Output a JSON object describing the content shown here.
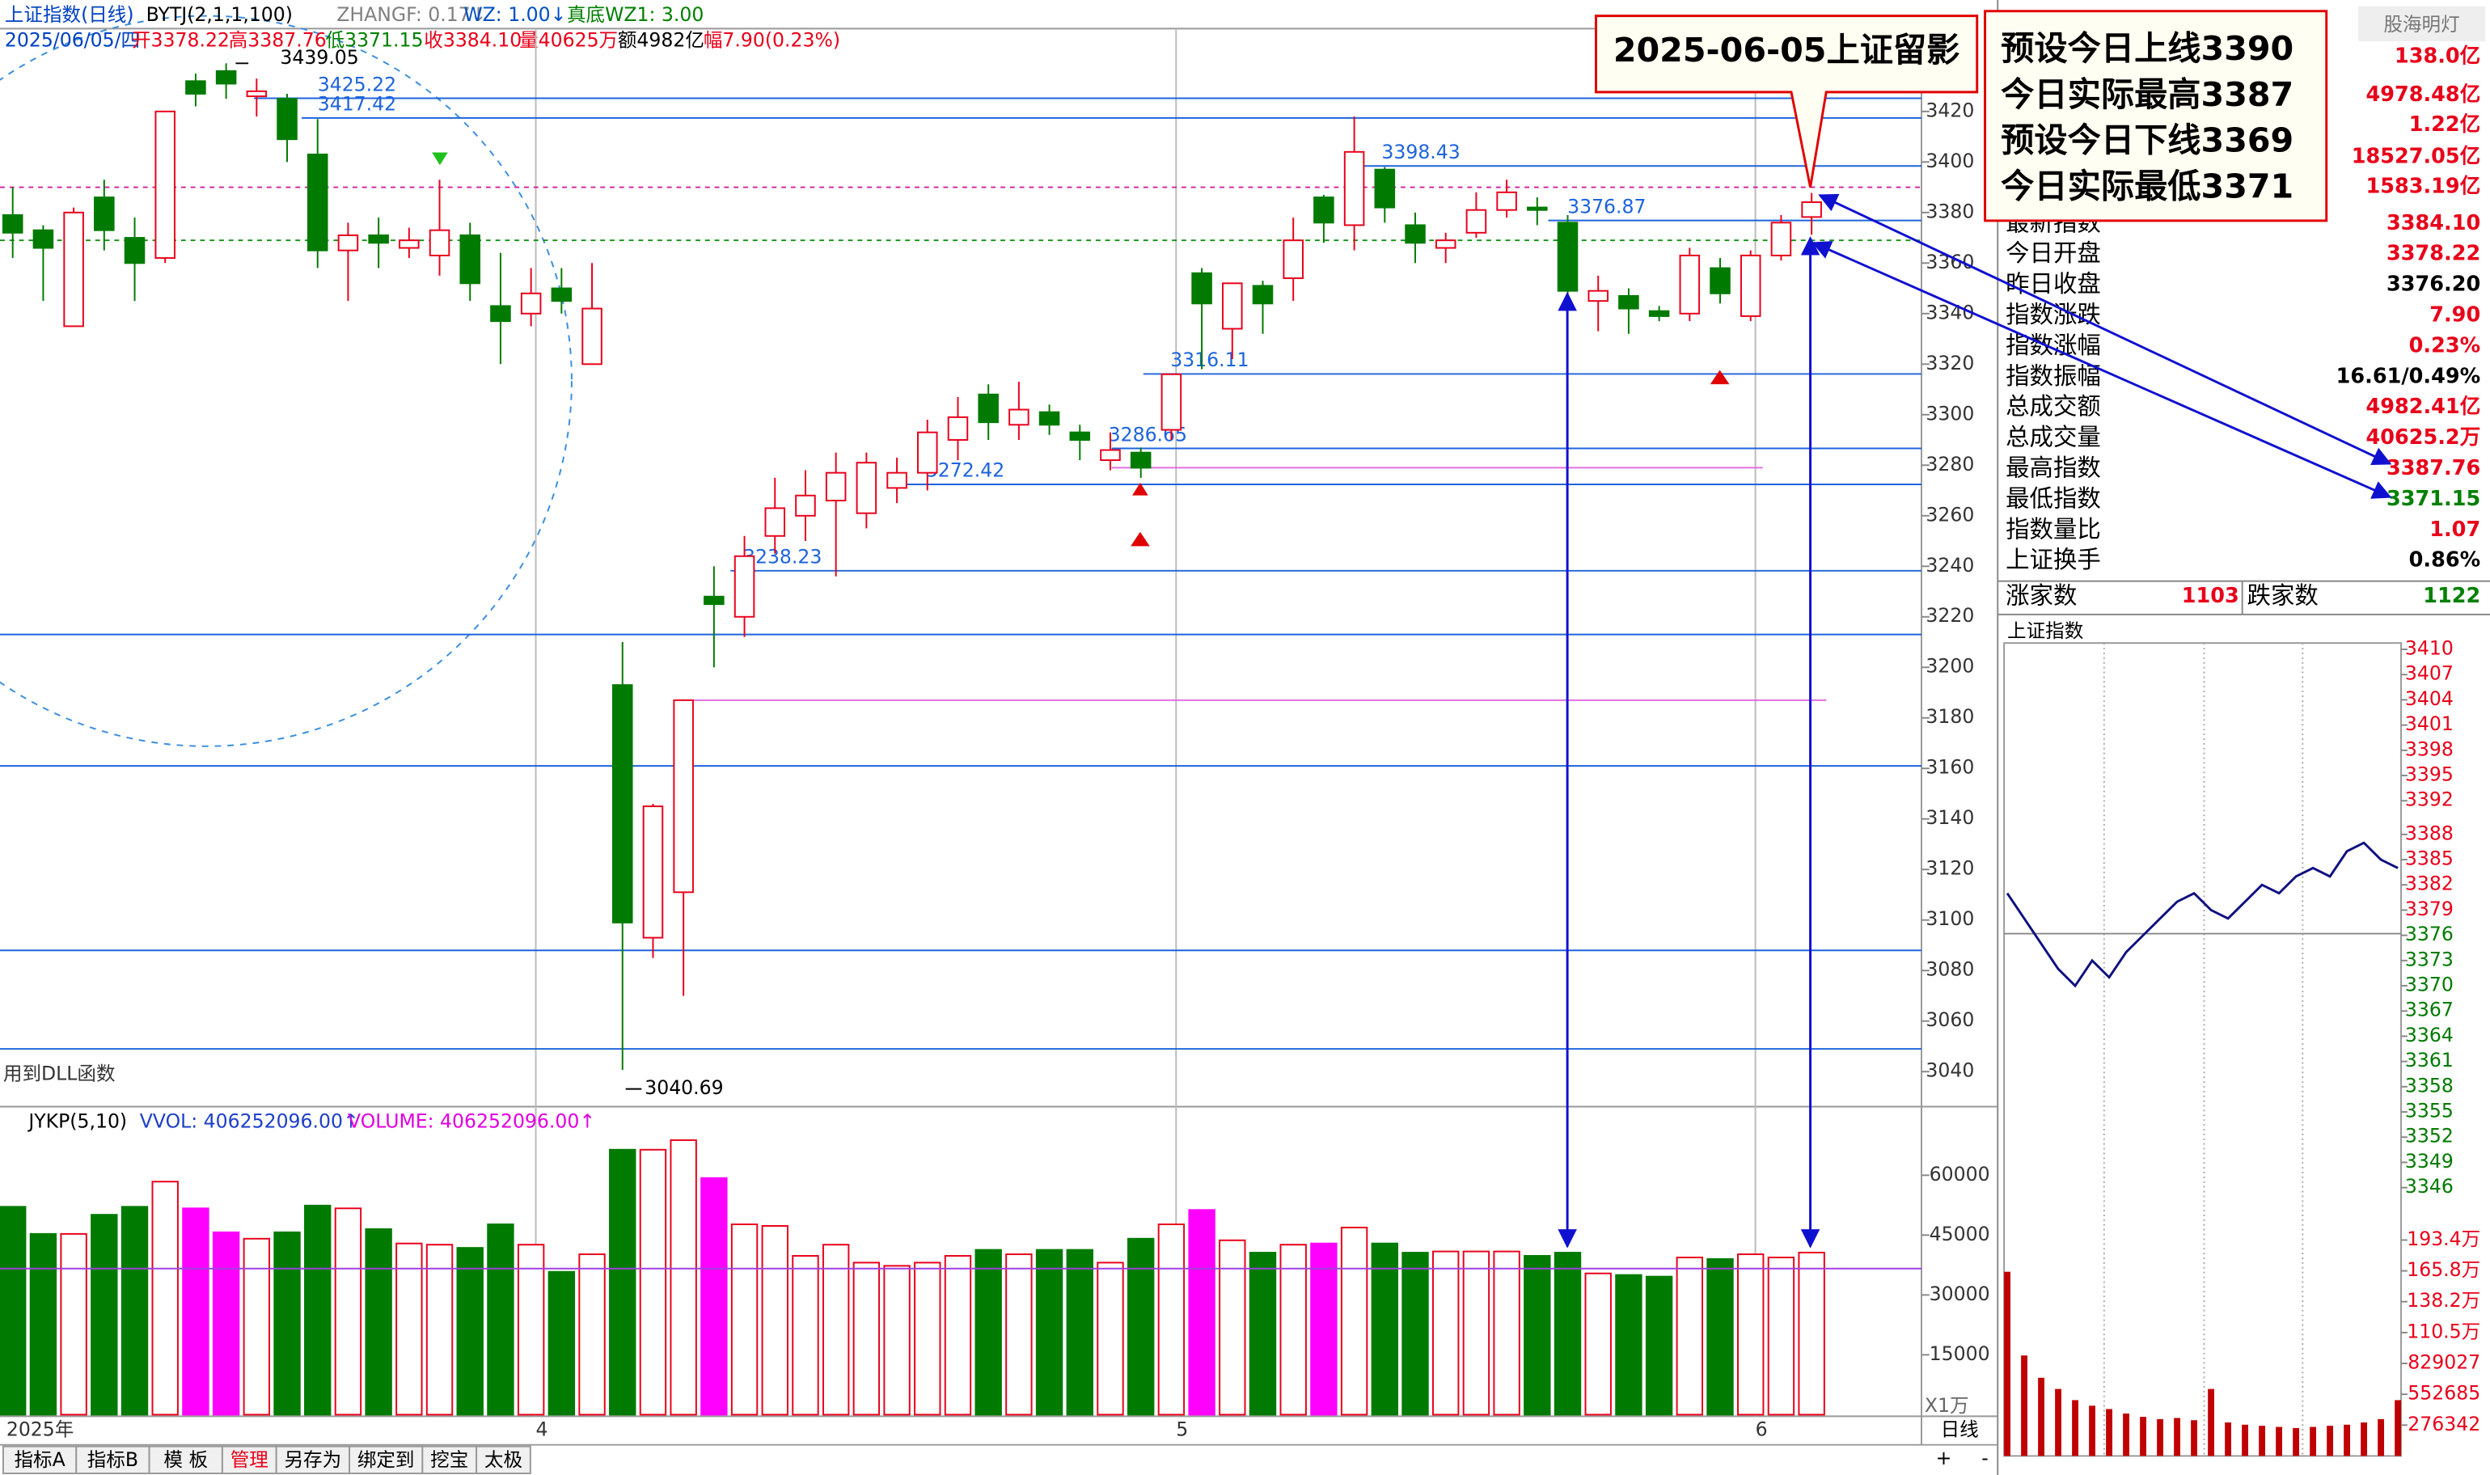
{
  "header": {
    "title": "上证指数(日线)",
    "indicators": [
      {
        "text": "BYTJ(2,1,1,100)",
        "color": "#000000"
      },
      {
        "text": "ZHANGF: 0.17↓",
        "color": "#808080"
      },
      {
        "text": "WZ: 1.00↓",
        "color": "#0050c0"
      },
      {
        "text": "真底WZ1: 3.00",
        "color": "#008000"
      }
    ],
    "info": [
      {
        "text": "2025/06/05/四",
        "color": "#0040c0"
      },
      {
        "text": "开3378.22",
        "color": "#e8001a"
      },
      {
        "text": "高3387.76",
        "color": "#e8001a"
      },
      {
        "text": "低3371.15",
        "color": "#008000"
      },
      {
        "text": "收3384.10",
        "color": "#e8001a"
      },
      {
        "text": "量40625万",
        "color": "#e8001a"
      },
      {
        "text": "额4982亿",
        "color": "#000000"
      },
      {
        "text": "幅7.90(0.23%)",
        "color": "#e8001a"
      }
    ]
  },
  "chart_data": [
    {
      "type": "candlestick",
      "up_color": "#e8001a",
      "down_color": "#007a00",
      "categories": [
        "2025年",
        null,
        null,
        null,
        null,
        null,
        null,
        null,
        null,
        null,
        null,
        null,
        null,
        null,
        null,
        null,
        null,
        "4",
        null,
        null,
        null,
        null,
        null,
        null,
        null,
        null,
        null,
        null,
        null,
        null,
        null,
        null,
        null,
        null,
        null,
        null,
        null,
        null,
        "5",
        null,
        null,
        null,
        null,
        null,
        null,
        null,
        null,
        null,
        null,
        null,
        null,
        null,
        null,
        null,
        null,
        null,
        null,
        "6",
        null,
        null
      ],
      "open": [
        3379,
        3373,
        3335,
        3386,
        3370,
        3362,
        3432,
        3436,
        3426,
        3425,
        3403,
        3365,
        3371,
        3366,
        3363,
        3371,
        3343,
        3340,
        3350,
        3320,
        3193,
        3093,
        3111,
        3228,
        3220,
        3252,
        3260,
        3266,
        3261,
        3271,
        3277,
        3290,
        3308,
        3296,
        3301,
        3293,
        3282,
        3285,
        3294,
        3356,
        3334,
        3351,
        3354,
        3386,
        3375,
        3397,
        3375,
        3366,
        3372,
        3381,
        3382,
        3376,
        3345,
        3347,
        3341,
        3340,
        3358,
        3339,
        3363,
        3378.22
      ],
      "high": [
        3390,
        3375,
        3382,
        3393,
        3378,
        3420,
        3435,
        3439.05,
        3433,
        3427,
        3417,
        3376,
        3378,
        3374,
        3393,
        3376,
        3364,
        3358,
        3358,
        3360,
        3210,
        3146,
        3187,
        3240,
        3252,
        3275,
        3278,
        3285,
        3285,
        3283,
        3298,
        3307,
        3312,
        3313,
        3304,
        3296,
        3293,
        3287,
        3316,
        3358,
        3352,
        3353,
        3378,
        3387,
        3418,
        3398,
        3380,
        3372,
        3388,
        3393,
        3386,
        3379,
        3355,
        3350,
        3343,
        3366,
        3362,
        3365,
        3379,
        3387.76
      ],
      "low": [
        3362,
        3345,
        3335,
        3365,
        3345,
        3360,
        3422,
        3425,
        3418,
        3400,
        3358,
        3345,
        3358,
        3362,
        3355,
        3345,
        3320,
        3335,
        3340,
        3320,
        3040.69,
        3085,
        3070,
        3200,
        3212,
        3245,
        3250,
        3236,
        3255,
        3265,
        3270,
        3282,
        3290,
        3290,
        3292,
        3282,
        3278,
        3275,
        3290,
        3318,
        3322,
        3332,
        3345,
        3368,
        3365,
        3376,
        3360,
        3360,
        3370,
        3378,
        3375,
        3340,
        3333,
        3332,
        3337,
        3337,
        3344,
        3337,
        3361,
        3371.15
      ],
      "close": [
        3372,
        3366,
        3380,
        3373,
        3360,
        3420,
        3427,
        3431,
        3428,
        3409,
        3365,
        3371,
        3368,
        3369,
        3373,
        3352,
        3337,
        3348,
        3345,
        3342,
        3099,
        3145,
        3187,
        3225,
        3244,
        3263,
        3268,
        3277,
        3281,
        3277,
        3293,
        3299,
        3297,
        3302,
        3296,
        3290,
        3286,
        3279,
        3316,
        3344,
        3352,
        3344,
        3369,
        3376,
        3404,
        3382,
        3368,
        3369,
        3381,
        3388,
        3381,
        3349,
        3349,
        3342,
        3339,
        3363,
        3348,
        3363,
        3376,
        3384.1
      ],
      "ylim": [
        3027.4,
        3452.8
      ],
      "yticks": [
        3040,
        3060,
        3080,
        3100,
        3120,
        3140,
        3160,
        3180,
        3200,
        3220,
        3240,
        3260,
        3280,
        3300,
        3320,
        3340,
        3360,
        3380,
        3400,
        3420
      ],
      "levels": [
        3425.22,
        3417.42,
        3398.43,
        3376.87,
        3316.11,
        3286.65,
        3272.42,
        3238.23
      ],
      "level_color": "#1e64dc",
      "plain_levels": [
        3213,
        3161,
        3088,
        3049
      ],
      "pink_levels": [
        3187,
        3279
      ],
      "upper_line": 3390,
      "lower_line": 3369,
      "high_label": "3439.05",
      "low_label": "3040.69",
      "note": "用到DLL函数"
    },
    {
      "type": "bar",
      "title": "JYKP(5,10)",
      "legend": [
        {
          "text": "VVOL: 406252096.00↑",
          "color": "#1e40c8"
        },
        {
          "text": "VOLUME: 406252096.00↑",
          "color": "#e000e0"
        }
      ],
      "values": [
        52100,
        45300,
        45300,
        50100,
        52100,
        58400,
        51700,
        45700,
        44100,
        45700,
        52400,
        51700,
        46500,
        42900,
        42600,
        41800,
        47700,
        42600,
        35800,
        40200,
        66400,
        66400,
        68800,
        59300,
        47700,
        47300,
        39800,
        42600,
        38100,
        37300,
        38100,
        39800,
        41300,
        40200,
        41300,
        41300,
        38100,
        44100,
        47700,
        51300,
        43700,
        40600,
        42600,
        42900,
        46900,
        42900,
        40600,
        40900,
        40900,
        40900,
        39800,
        40600,
        35400,
        35000,
        34600,
        39400,
        39000,
        40200,
        39400,
        40625
      ],
      "colors": [
        "#007a00",
        "#007a00",
        "#e8001a",
        "#007a00",
        "#007a00",
        "#e8001a",
        "#ff00ff",
        "#ff00ff",
        "#e8001a",
        "#007a00",
        "#007a00",
        "#e8001a",
        "#007a00",
        "#e8001a",
        "#e8001a",
        "#007a00",
        "#007a00",
        "#e8001a",
        "#007a00",
        "#e8001a",
        "#007a00",
        "#e8001a",
        "#e8001a",
        "#ff00ff",
        "#e8001a",
        "#e8001a",
        "#e8001a",
        "#e8001a",
        "#e8001a",
        "#e8001a",
        "#e8001a",
        "#e8001a",
        "#007a00",
        "#e8001a",
        "#007a00",
        "#007a00",
        "#e8001a",
        "#007a00",
        "#e8001a",
        "#ff00ff",
        "#e8001a",
        "#007a00",
        "#e8001a",
        "#ff00ff",
        "#e8001a",
        "#007a00",
        "#007a00",
        "#e8001a",
        "#e8001a",
        "#e8001a",
        "#007a00",
        "#007a00",
        "#e8001a",
        "#007a00",
        "#007a00",
        "#e8001a",
        "#007a00",
        "#e8001a",
        "#e8001a",
        "#e8001a"
      ],
      "hollow": "#e8001a",
      "reference": 36600,
      "ylim": [
        0,
        76000
      ],
      "yticks": [
        15000,
        30000,
        45000,
        60000
      ],
      "unit": "X1万"
    },
    {
      "type": "line",
      "title": "上证指数",
      "color": "#101080",
      "values": [
        3381,
        3378,
        3375,
        3372,
        3370,
        3373,
        3371,
        3374,
        3376,
        3378,
        3380,
        3381,
        3379,
        3378,
        3380,
        3382,
        3381,
        3383,
        3384,
        3383,
        3386,
        3387,
        3385,
        3384
      ],
      "baseline": 3376.2,
      "ylim": [
        3346,
        3410
      ],
      "yticks": [
        3410,
        3407,
        3404,
        3401,
        3398,
        3395,
        3392,
        3388,
        3385,
        3382,
        3379,
        3376,
        3373,
        3370,
        3367,
        3364,
        3361,
        3358,
        3355,
        3352,
        3349,
        3346
      ],
      "volume": [
        1650000,
        900000,
        700000,
        600000,
        500000,
        450000,
        420000,
        380000,
        350000,
        330000,
        340000,
        320000,
        600000,
        300000,
        280000,
        270000,
        260000,
        250000,
        260000,
        270000,
        280000,
        300000,
        330000,
        500000
      ],
      "volume_color": "#c00000",
      "vlim": [
        0,
        2233000
      ],
      "vticks": [
        {
          "value": 1934000,
          "label": "193.4万"
        },
        {
          "value": 1658000,
          "label": "165.8万"
        },
        {
          "value": 1382000,
          "label": "138.2万"
        },
        {
          "value": 1105000,
          "label": "110.5万"
        },
        829027,
        552685,
        276342
      ]
    }
  ],
  "quote_panel": {
    "watermark": "股海明灯",
    "top_values": [
      {
        "text": "138.0亿",
        "color": "#e8001a"
      },
      {
        "text": "4978.48亿",
        "color": "#e8001a"
      },
      {
        "text": "1.22亿",
        "color": "#e8001a"
      },
      {
        "text": "18527.05亿",
        "color": "#e8001a"
      },
      {
        "text": "1583.19亿",
        "color": "#e8001a"
      }
    ],
    "rows": [
      {
        "label": "最新指数",
        "value": "3384.10",
        "color": "#e8001a"
      },
      {
        "label": "今日开盘",
        "value": "3378.22",
        "color": "#e8001a"
      },
      {
        "label": "昨日收盘",
        "value": "3376.20",
        "color": "#000000"
      },
      {
        "label": "指数涨跌",
        "value": "7.90",
        "color": "#e8001a"
      },
      {
        "label": "指数涨幅",
        "value": "0.23%",
        "color": "#e8001a"
      },
      {
        "label": "指数振幅",
        "value": "16.61/0.49%",
        "color": "#000000"
      },
      {
        "label": "总成交额",
        "value": "4982.41亿",
        "color": "#e8001a"
      },
      {
        "label": "总成交量",
        "value": "40625.2万",
        "color": "#e8001a"
      },
      {
        "label": "最高指数",
        "value": "3387.76",
        "color": "#e8001a"
      },
      {
        "label": "最低指数",
        "value": "3371.15",
        "color": "#008000"
      },
      {
        "label": "指数量比",
        "value": "1.07",
        "color": "#e8001a"
      },
      {
        "label": "上证换手",
        "value": "0.86%",
        "color": "#000000"
      }
    ],
    "breadth": {
      "up_label": "涨家数",
      "up": "1103",
      "down_label": "跌家数",
      "down": "1122"
    }
  },
  "annotations": {
    "caption": "2025-06-05上证留影",
    "lines": [
      "预设今日上线3390",
      "今日实际最高3387",
      "预设今日下线3369",
      "今日实际最低3371"
    ]
  },
  "toolbar": [
    "指标A",
    "指标B",
    "模 板",
    "管理",
    "另存为",
    "绑定到",
    "挖宝",
    "太极"
  ],
  "period": "日线",
  "zoom": [
    "+",
    "-"
  ]
}
